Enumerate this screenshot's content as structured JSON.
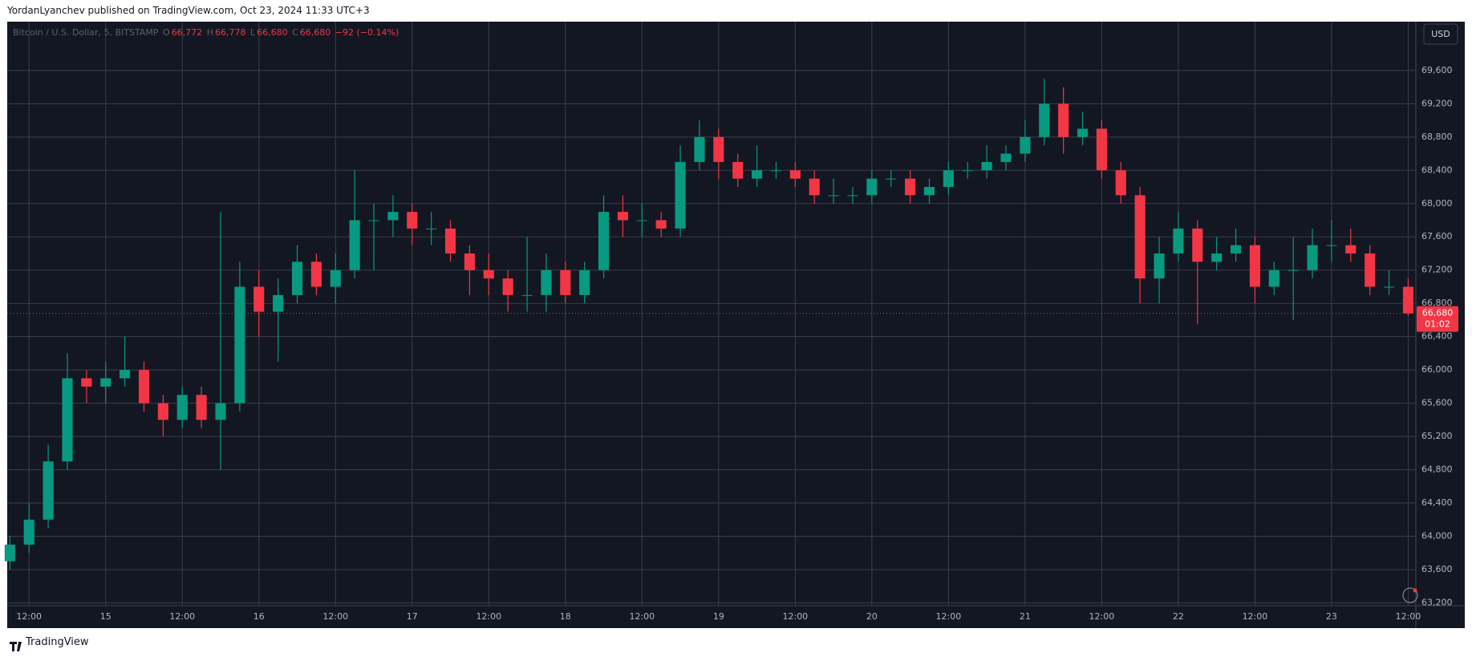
{
  "header": {
    "byline": "YordanLyanchev published on TradingView.com, Oct 23, 2024 11:33 UTC+3"
  },
  "chart_data": {
    "type": "candlestick",
    "symbol": "Bitcoin / U.S. Dollar, 5, BITSTAMP",
    "legend": {
      "o_label": "O",
      "open": "66,772",
      "h_label": "H",
      "high": "66,778",
      "l_label": "L",
      "low": "66,680",
      "c_label": "C",
      "close": "66,680",
      "change": "−92 (−0.14%)"
    },
    "currency": "USD",
    "last_price": {
      "value": 66680,
      "label": "66,680"
    },
    "countdown": "01:02",
    "up_color": "#089981",
    "down_color": "#f23645",
    "x": [
      9,
      12,
      15,
      18,
      21,
      24,
      27,
      30,
      33,
      36,
      39,
      42,
      45,
      48,
      51,
      54,
      57,
      60,
      63,
      66,
      69,
      72,
      75,
      78,
      81,
      84,
      87,
      90,
      93,
      96,
      99,
      102,
      105,
      108,
      111,
      114,
      117,
      120,
      123,
      126,
      129,
      132,
      135,
      138,
      141,
      144,
      147,
      150,
      153,
      156,
      159,
      162,
      165,
      168,
      171,
      174,
      177,
      180,
      183,
      186,
      189,
      192,
      195,
      198,
      201,
      204,
      207,
      210,
      213,
      216,
      219,
      222,
      225,
      228
    ],
    "open": [
      63700,
      63900,
      64200,
      64900,
      65900,
      65800,
      65900,
      66000,
      65600,
      65400,
      65700,
      65400,
      65600,
      67000,
      66700,
      66900,
      67300,
      67000,
      67200,
      67800,
      67800,
      67900,
      67700,
      67700,
      67400,
      67200,
      67100,
      66900,
      66900,
      67200,
      66900,
      67200,
      67900,
      67800,
      67800,
      67700,
      68500,
      68800,
      68500,
      68300,
      68400,
      68400,
      68300,
      68100,
      68100,
      68100,
      68300,
      68300,
      68100,
      68200,
      68400,
      68400,
      68500,
      68600,
      68800,
      69200,
      68800,
      68900,
      68400,
      68100,
      67100,
      67400,
      67700,
      67300,
      67400,
      67500,
      67000,
      67200,
      67200,
      67500,
      67500,
      67400,
      67000,
      67000
    ],
    "high": [
      64000,
      64400,
      65100,
      66200,
      66000,
      66100,
      66400,
      66100,
      65700,
      65800,
      65800,
      67900,
      67300,
      67200,
      67100,
      67500,
      67400,
      67400,
      68400,
      68000,
      68100,
      68000,
      67900,
      67800,
      67500,
      67400,
      67200,
      67600,
      67400,
      67300,
      67300,
      68100,
      68100,
      68000,
      67900,
      68700,
      69000,
      68900,
      68600,
      68700,
      68500,
      68500,
      68400,
      68300,
      68200,
      68400,
      68400,
      68400,
      68300,
      68500,
      68500,
      68700,
      68700,
      69000,
      69500,
      69400,
      69100,
      69000,
      68500,
      68200,
      67600,
      67900,
      67800,
      67600,
      67700,
      67600,
      67300,
      67600,
      67700,
      67800,
      67700,
      67500,
      67200,
      67100
    ],
    "low": [
      63600,
      63800,
      64100,
      64800,
      65600,
      65600,
      65800,
      65500,
      65200,
      65300,
      65300,
      64800,
      65500,
      66400,
      66100,
      66800,
      66900,
      66800,
      67100,
      67200,
      67600,
      67500,
      67500,
      67300,
      66900,
      66900,
      66700,
      66700,
      66700,
      66800,
      66800,
      67100,
      67600,
      67600,
      67600,
      67600,
      68400,
      68300,
      68200,
      68200,
      68300,
      68200,
      68000,
      68000,
      68000,
      68000,
      68200,
      68000,
      68000,
      68100,
      68300,
      68300,
      68400,
      68500,
      68700,
      68600,
      68700,
      68300,
      68000,
      66800,
      66800,
      67300,
      66550,
      67200,
      67300,
      66800,
      66900,
      66600,
      67100,
      67300,
      67300,
      66900,
      66900,
      66650
    ],
    "close": [
      63900,
      64200,
      64900,
      65900,
      65800,
      65900,
      66000,
      65600,
      65400,
      65700,
      65400,
      65600,
      67000,
      66700,
      66900,
      67300,
      67000,
      67200,
      67800,
      67800,
      67900,
      67700,
      67700,
      67400,
      67200,
      67100,
      66900,
      66900,
      67200,
      66900,
      67200,
      67900,
      67800,
      67800,
      67700,
      68500,
      68800,
      68500,
      68300,
      68400,
      68400,
      68300,
      68100,
      68100,
      68100,
      68300,
      68300,
      68100,
      68200,
      68400,
      68400,
      68500,
      68600,
      68800,
      69200,
      68800,
      68900,
      68400,
      68100,
      67100,
      67400,
      67700,
      67300,
      67400,
      67500,
      67000,
      67200,
      67200,
      67500,
      67500,
      67400,
      67000,
      67000,
      66680
    ],
    "xlim": [
      8.58,
      229.2
    ],
    "xticks": [
      {
        "value": 12,
        "label": "12:00"
      },
      {
        "value": 24,
        "label": "15"
      },
      {
        "value": 36,
        "label": "12:00"
      },
      {
        "value": 48,
        "label": "16"
      },
      {
        "value": 60,
        "label": "12:00"
      },
      {
        "value": 72,
        "label": "17"
      },
      {
        "value": 84,
        "label": "12:00"
      },
      {
        "value": 96,
        "label": "18"
      },
      {
        "value": 108,
        "label": "12:00"
      },
      {
        "value": 120,
        "label": "19"
      },
      {
        "value": 132,
        "label": "12:00"
      },
      {
        "value": 144,
        "label": "20"
      },
      {
        "value": 156,
        "label": "12:00"
      },
      {
        "value": 168,
        "label": "21"
      },
      {
        "value": 180,
        "label": "12:00"
      },
      {
        "value": 192,
        "label": "22"
      },
      {
        "value": 204,
        "label": "12:00"
      },
      {
        "value": 216,
        "label": "23"
      },
      {
        "value": 228,
        "label": "12:00"
      }
    ],
    "ylim": [
      63166,
      70187
    ],
    "yticks": [
      {
        "value": 63200,
        "label": "63,200"
      },
      {
        "value": 63600,
        "label": "63,600"
      },
      {
        "value": 64000,
        "label": "64,000"
      },
      {
        "value": 64400,
        "label": "64,400"
      },
      {
        "value": 64800,
        "label": "64,800"
      },
      {
        "value": 65200,
        "label": "65,200"
      },
      {
        "value": 65600,
        "label": "65,600"
      },
      {
        "value": 66000,
        "label": "66,000"
      },
      {
        "value": 66400,
        "label": "66,400"
      },
      {
        "value": 66800,
        "label": "66,800"
      },
      {
        "value": 67200,
        "label": "67,200"
      },
      {
        "value": 67600,
        "label": "67,600"
      },
      {
        "value": 68000,
        "label": "68,000"
      },
      {
        "value": 68400,
        "label": "68,400"
      },
      {
        "value": 68800,
        "label": "68,800"
      },
      {
        "value": 69200,
        "label": "69,200"
      },
      {
        "value": 69600,
        "label": "69,600"
      }
    ],
    "grid": true
  },
  "footer": {
    "brand": "TradingView"
  }
}
